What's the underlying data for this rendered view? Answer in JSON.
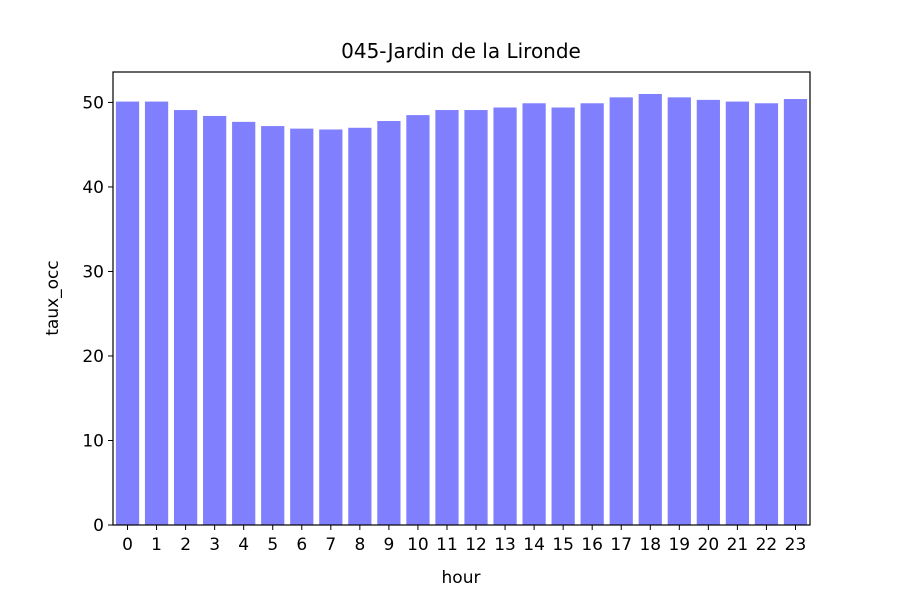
{
  "chart_data": {
    "type": "bar",
    "title": "045-Jardin de la Lironde",
    "xlabel": "hour",
    "ylabel": "taux_occ",
    "categories": [
      "0",
      "1",
      "2",
      "3",
      "4",
      "5",
      "6",
      "7",
      "8",
      "9",
      "10",
      "11",
      "12",
      "13",
      "14",
      "15",
      "16",
      "17",
      "18",
      "19",
      "20",
      "21",
      "22",
      "23"
    ],
    "values": [
      50.1,
      50.1,
      49.1,
      48.4,
      47.7,
      47.2,
      46.9,
      46.8,
      47.0,
      47.8,
      48.5,
      49.1,
      49.1,
      49.4,
      49.9,
      49.4,
      49.9,
      50.6,
      51.0,
      50.6,
      50.3,
      50.1,
      49.9,
      50.4
    ],
    "ylim": [
      0,
      53.6
    ],
    "yticks": [
      "0",
      "10",
      "20",
      "30",
      "40",
      "50"
    ],
    "bar_color": "#8080ff",
    "grid": false,
    "legend": "none"
  }
}
